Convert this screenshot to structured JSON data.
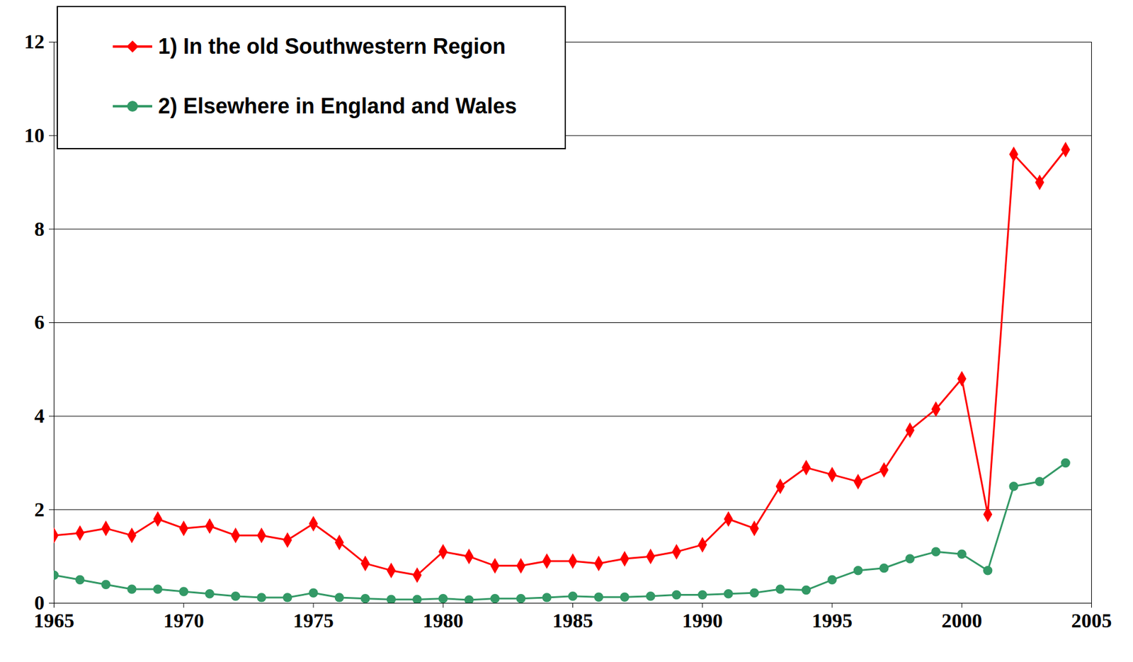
{
  "chart_data": {
    "type": "line",
    "x": [
      1965,
      1966,
      1967,
      1968,
      1969,
      1970,
      1971,
      1972,
      1973,
      1974,
      1975,
      1976,
      1977,
      1978,
      1979,
      1980,
      1981,
      1982,
      1983,
      1984,
      1985,
      1986,
      1987,
      1988,
      1989,
      1990,
      1991,
      1992,
      1993,
      1994,
      1995,
      1996,
      1997,
      1998,
      1999,
      2000,
      2001,
      2002,
      2003,
      2004
    ],
    "series": [
      {
        "name": "1) In the old Southwestern Region",
        "color": "#ff0000",
        "marker": "diamond",
        "values": [
          1.45,
          1.5,
          1.6,
          1.45,
          1.8,
          1.6,
          1.65,
          1.45,
          1.45,
          1.35,
          1.7,
          1.3,
          0.85,
          0.7,
          0.6,
          1.1,
          1.0,
          0.8,
          0.8,
          0.9,
          0.9,
          0.85,
          0.95,
          1.0,
          1.1,
          1.25,
          1.8,
          1.6,
          2.5,
          2.9,
          2.75,
          2.6,
          2.85,
          3.7,
          4.15,
          4.8,
          1.9,
          9.6,
          9.0,
          9.7
        ]
      },
      {
        "name": "2) Elsewhere in England and Wales",
        "color": "#339966",
        "marker": "circle",
        "values": [
          0.6,
          0.5,
          0.4,
          0.3,
          0.3,
          0.25,
          0.2,
          0.15,
          0.12,
          0.12,
          0.22,
          0.12,
          0.1,
          0.08,
          0.08,
          0.1,
          0.07,
          0.1,
          0.1,
          0.12,
          0.15,
          0.13,
          0.13,
          0.15,
          0.18,
          0.18,
          0.2,
          0.22,
          0.3,
          0.28,
          0.5,
          0.7,
          0.75,
          0.95,
          1.1,
          1.05,
          0.7,
          2.5,
          2.6,
          3.0
        ]
      }
    ],
    "xlim": [
      1965,
      2005
    ],
    "xticks": [
      1965,
      1970,
      1975,
      1980,
      1985,
      1990,
      1995,
      2000,
      2005
    ],
    "ylim": [
      0,
      12
    ],
    "yticks": [
      0,
      2,
      4,
      6,
      8,
      10,
      12
    ],
    "grid": true,
    "legend": "top-left"
  }
}
